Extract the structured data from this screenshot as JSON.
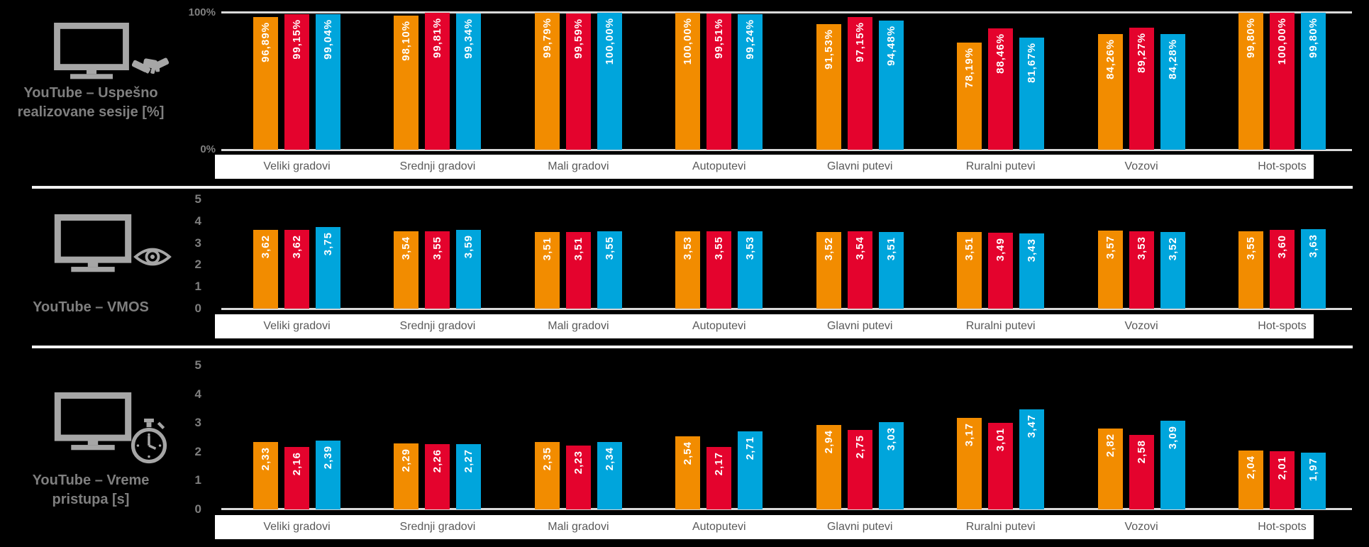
{
  "colors": {
    "orange": "#F28C00",
    "red": "#E4032D",
    "blue": "#00A5DC",
    "axis_line": "#D9D9D9",
    "separator": "#F2F2F2",
    "tick_text": "#7F7F7F",
    "category_text": "#595959",
    "title_text": "#7F7F7F",
    "icon_gray": "#A6A6A6",
    "strip_bg": "#FFFFFF",
    "background": "#000000",
    "value_label_text": "#FFFFFF"
  },
  "categories": [
    "Veliki gradovi",
    "Srednji gradovi",
    "Mali gradovi",
    "Autoputevi",
    "Glavni putevi",
    "Ruralni putevi",
    "Vozovi",
    "Hot-spots"
  ],
  "panels": [
    {
      "title_lines": [
        "YouTube – Uspešno",
        "realizovane sesije [%]"
      ],
      "icon": "monitor-handshake"
    },
    {
      "title_lines": [
        "YouTube – VMOS"
      ],
      "icon": "monitor-eye"
    },
    {
      "title_lines": [
        "YouTube – Vreme",
        "pristupa [s]"
      ],
      "icon": "monitor-stopwatch"
    }
  ],
  "chart_data": [
    {
      "type": "bar",
      "title": "YouTube – Uspešno realizovane sesije [%]",
      "categories": [
        "Veliki gradovi",
        "Srednji gradovi",
        "Mali gradovi",
        "Autoputevi",
        "Glavni putevi",
        "Ruralni putevi",
        "Vozovi",
        "Hot-spots"
      ],
      "ylim": [
        0,
        100
      ],
      "y_ticks": [
        "100%",
        "0%"
      ],
      "grid": false,
      "legend": "none",
      "series": [
        {
          "name": "orange",
          "color": "#F28C00",
          "values": [
            96.89,
            98.1,
            99.79,
            100.0,
            91.53,
            78.19,
            84.26,
            99.8
          ],
          "labels": [
            "96,89%",
            "98,10%",
            "99,79%",
            "100,00%",
            "91,53%",
            "78,19%",
            "84,26%",
            "99,80%"
          ]
        },
        {
          "name": "red",
          "color": "#E4032D",
          "values": [
            99.15,
            99.81,
            99.59,
            99.51,
            97.15,
            88.46,
            89.27,
            100.0
          ],
          "labels": [
            "99,15%",
            "99,81%",
            "99,59%",
            "99,51%",
            "97,15%",
            "88,46%",
            "89,27%",
            "100,00%"
          ]
        },
        {
          "name": "blue",
          "color": "#00A5DC",
          "values": [
            99.04,
            99.34,
            100.0,
            99.24,
            94.48,
            81.67,
            84.28,
            99.8
          ],
          "labels": [
            "99,04%",
            "99,34%",
            "100,00%",
            "99,24%",
            "94,48%",
            "81,67%",
            "84,28%",
            "99,80%"
          ]
        }
      ]
    },
    {
      "type": "bar",
      "title": "YouTube – VMOS",
      "categories": [
        "Veliki gradovi",
        "Srednji gradovi",
        "Mali gradovi",
        "Autoputevi",
        "Glavni putevi",
        "Ruralni putevi",
        "Vozovi",
        "Hot-spots"
      ],
      "ylim": [
        0,
        5
      ],
      "y_ticks": [
        "5",
        "4",
        "3",
        "2",
        "1",
        "0"
      ],
      "grid": false,
      "legend": "none",
      "series": [
        {
          "name": "orange",
          "color": "#F28C00",
          "values": [
            3.62,
            3.54,
            3.51,
            3.53,
            3.52,
            3.51,
            3.57,
            3.55
          ],
          "labels": [
            "3,62",
            "3,54",
            "3,51",
            "3,53",
            "3,52",
            "3,51",
            "3,57",
            "3,55"
          ]
        },
        {
          "name": "red",
          "color": "#E4032D",
          "values": [
            3.62,
            3.55,
            3.51,
            3.55,
            3.54,
            3.49,
            3.53,
            3.6
          ],
          "labels": [
            "3,62",
            "3,55",
            "3,51",
            "3,55",
            "3,54",
            "3,49",
            "3,53",
            "3,60"
          ]
        },
        {
          "name": "blue",
          "color": "#00A5DC",
          "values": [
            3.75,
            3.59,
            3.55,
            3.53,
            3.51,
            3.43,
            3.52,
            3.63
          ],
          "labels": [
            "3,75",
            "3,59",
            "3,55",
            "3,53",
            "3,51",
            "3,43",
            "3,52",
            "3,63"
          ]
        }
      ]
    },
    {
      "type": "bar",
      "title": "YouTube – Vreme pristupa [s]",
      "categories": [
        "Veliki gradovi",
        "Srednji gradovi",
        "Mali gradovi",
        "Autoputevi",
        "Glavni putevi",
        "Ruralni putevi",
        "Vozovi",
        "Hot-spots"
      ],
      "ylim": [
        0,
        5
      ],
      "y_ticks": [
        "5",
        "4",
        "3",
        "2",
        "1",
        "0"
      ],
      "grid": false,
      "legend": "none",
      "series": [
        {
          "name": "orange",
          "color": "#F28C00",
          "values": [
            2.33,
            2.29,
            2.35,
            2.54,
            2.94,
            3.17,
            2.82,
            2.04
          ],
          "labels": [
            "2,33",
            "2,29",
            "2,35",
            "2,54",
            "2,94",
            "3,17",
            "2,82",
            "2,04"
          ]
        },
        {
          "name": "red",
          "color": "#E4032D",
          "values": [
            2.16,
            2.26,
            2.23,
            2.17,
            2.75,
            3.01,
            2.58,
            2.01
          ],
          "labels": [
            "2,16",
            "2,26",
            "2,23",
            "2,17",
            "2,75",
            "3,01",
            "2,58",
            "2,01"
          ]
        },
        {
          "name": "blue",
          "color": "#00A5DC",
          "values": [
            2.39,
            2.27,
            2.34,
            2.71,
            3.03,
            3.47,
            3.09,
            1.97
          ],
          "labels": [
            "2,39",
            "2,27",
            "2,34",
            "2,71",
            "3,03",
            "3,47",
            "3,09",
            "1,97"
          ]
        }
      ]
    }
  ]
}
